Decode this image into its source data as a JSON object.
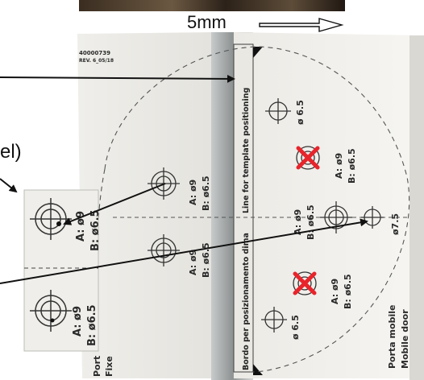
{
  "header": {
    "shift_label": "5mm"
  },
  "template": {
    "part_number": "40000739",
    "revision": "REV. 6_05/18",
    "line_label_en": "Line for template positioning",
    "line_label_it": "Bordo per posizionamento dima",
    "mobile_label_it": "Porta mobile",
    "mobile_label_en": "Mobile door",
    "fixed_label_it": "Port",
    "fixed_label_en": "Fixe",
    "holes": {
      "top_phi": "ø 6.5",
      "upper_a": "A: ø9",
      "upper_b": "B: ø6.5",
      "left_upper_a": "A: ø9",
      "left_upper_b": "B: ø6.5",
      "center_a": "A: ø9",
      "center_b": "B: ø6.5",
      "center_phi": "ø7.5",
      "left_lower_a": "A: ø9",
      "left_lower_b": "B: ø6.5",
      "lower_a": "A: ø9",
      "lower_b": "B: ø6.5",
      "bottom_phi": "ø 6.5"
    }
  },
  "inset": {
    "caption_fragment": "el)",
    "top_a": "A: ø9",
    "top_b": "B: ø6.5",
    "bottom_a": "A: ø9",
    "bottom_b": "B: ø6.5"
  },
  "colors": {
    "arrow": "#111111",
    "cross": "#e8242b",
    "paper": "#f2f1ee",
    "gap": "#9c9f9f"
  }
}
